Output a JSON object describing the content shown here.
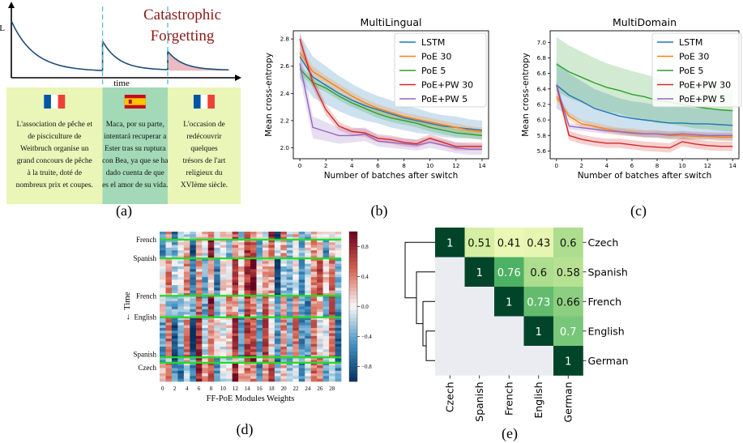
{
  "panel_labels": [
    "(a)",
    "(b)",
    "(c)",
    "(d)",
    "(e)"
  ],
  "chart_data": [
    {
      "type": "line",
      "panel": "(a)",
      "title": "Catastrophic Forgetting",
      "title_lines": [
        "Catastrophic",
        "Forgetting"
      ],
      "xlabel": "time",
      "ylabel": "L",
      "segments": [
        {
          "t_start": 0.0,
          "t_end": 0.42,
          "l_start": 0.9,
          "l_end": 0.1
        },
        {
          "t_start": 0.42,
          "t_end": 0.72,
          "l_start": 0.58,
          "l_end": 0.12
        },
        {
          "t_start": 0.72,
          "t_end": 1.0,
          "l_start": 0.42,
          "l_end": 0.12
        }
      ],
      "switch_times": [
        0.42,
        0.72
      ],
      "texts": [
        {
          "flag": "FR",
          "text": "L'association de pêche et de pisciculture de Weitbruch organise un grand concours de pêche à la truite, doté de nombreux prix et coupes.",
          "lines": [
            "L'association de pêche et",
            "de pisciculture de",
            "Weitbruch organise un",
            "grand concours de pêche",
            "à la truite, doté de",
            "nombreux prix et coupes."
          ]
        },
        {
          "flag": "ES",
          "text": "Maca, por su parte, intentará recuperar a Ester tras su ruptura con Bea, ya que se ha dado cuenta de que es el amor de su vida.",
          "lines": [
            "Maca, por su parte,",
            "intentará recuperar a",
            "Ester tras su ruptura",
            "con Bea, ya que se ha",
            "dado cuenta de que",
            "es el amor de su vida."
          ]
        },
        {
          "flag": "FR",
          "text": "L'occasion de redécouvrir quelques trésors de l'art religieux du XVIème siècle.",
          "lines": [
            "L'occasion de",
            "redécouvrir",
            "quelques",
            "trésors de l'art",
            "religieux du",
            "XVIème siècle."
          ]
        }
      ],
      "colors": {
        "curve": "#1f4e79",
        "switch": "#5bbcc9",
        "forget_fill": "#e8b4bc",
        "title": "#8b1a1a",
        "box_fr": "#eaf5b8",
        "box_es": "#a3d9b6"
      }
    },
    {
      "type": "line",
      "panel": "(b)",
      "title": "MultiLingual",
      "xlabel": "Number of batches after switch",
      "ylabel": "Mean cross-entropy",
      "xlim": [
        -0.5,
        14.5
      ],
      "ylim": [
        1.92,
        2.86
      ],
      "xticks": [
        0,
        2,
        4,
        6,
        8,
        10,
        12,
        14
      ],
      "yticks": [
        2.0,
        2.2,
        2.4,
        2.6,
        2.8
      ],
      "ytick_labels": [
        "2.0",
        "2.2",
        "2.4",
        "2.6",
        "2.8"
      ],
      "x": [
        0,
        1,
        2,
        3,
        4,
        5,
        6,
        7,
        8,
        9,
        10,
        11,
        12,
        13,
        14
      ],
      "legend_position": "top-right",
      "series": [
        {
          "name": "LSTM",
          "color": "#1f77b4",
          "values": [
            2.67,
            2.52,
            2.46,
            2.4,
            2.35,
            2.31,
            2.28,
            2.25,
            2.22,
            2.2,
            2.18,
            2.16,
            2.15,
            2.14,
            2.13
          ],
          "band": [
            0.16,
            0.15,
            0.14,
            0.13,
            0.12,
            0.11,
            0.1,
            0.1,
            0.09,
            0.09,
            0.08,
            0.08,
            0.08,
            0.07,
            0.07
          ]
        },
        {
          "name": "PoE 30",
          "color": "#ff7f0e",
          "values": [
            2.7,
            2.56,
            2.5,
            2.44,
            2.38,
            2.33,
            2.29,
            2.26,
            2.23,
            2.21,
            2.19,
            2.17,
            2.15,
            2.13,
            2.12
          ],
          "band": [
            0.04,
            0.04,
            0.03,
            0.03,
            0.03,
            0.03,
            0.03,
            0.03,
            0.03,
            0.03,
            0.03,
            0.03,
            0.03,
            0.03,
            0.03
          ]
        },
        {
          "name": "PoE 5",
          "color": "#2ca02c",
          "values": [
            2.58,
            2.48,
            2.44,
            2.38,
            2.33,
            2.29,
            2.25,
            2.22,
            2.2,
            2.18,
            2.15,
            2.13,
            2.11,
            2.1,
            2.09
          ],
          "band": [
            0.03,
            0.03,
            0.03,
            0.03,
            0.03,
            0.03,
            0.03,
            0.03,
            0.03,
            0.03,
            0.03,
            0.03,
            0.03,
            0.03,
            0.03
          ]
        },
        {
          "name": "PoE+PW 30",
          "color": "#d62728",
          "values": [
            2.8,
            2.48,
            2.28,
            2.16,
            2.12,
            2.11,
            2.07,
            2.06,
            2.04,
            2.03,
            2.07,
            2.04,
            2.01,
            2.01,
            2.01
          ],
          "band": [
            0.05,
            0.04,
            0.04,
            0.03,
            0.03,
            0.03,
            0.03,
            0.03,
            0.03,
            0.03,
            0.03,
            0.03,
            0.03,
            0.03,
            0.03
          ]
        },
        {
          "name": "PoE+PW 5",
          "color": "#9467bd",
          "values": [
            2.62,
            2.15,
            2.12,
            2.09,
            2.09,
            2.1,
            2.05,
            2.04,
            2.03,
            2.02,
            2.04,
            2.02,
            2.0,
            1.99,
            1.99
          ],
          "band": [
            0.1,
            0.08,
            0.07,
            0.06,
            0.05,
            0.05,
            0.04,
            0.04,
            0.04,
            0.04,
            0.04,
            0.04,
            0.04,
            0.04,
            0.04
          ]
        }
      ]
    },
    {
      "type": "line",
      "panel": "(c)",
      "title": "MultiDomain",
      "xlabel": "Number of batches after switch",
      "ylabel": "Mean cross-entropy",
      "xlim": [
        -0.5,
        14.5
      ],
      "ylim": [
        5.5,
        7.15
      ],
      "xticks": [
        0,
        2,
        4,
        6,
        8,
        10,
        12,
        14
      ],
      "yticks": [
        5.6,
        5.8,
        6.0,
        6.2,
        6.4,
        6.6,
        6.8,
        7.0
      ],
      "ytick_labels": [
        "5.6",
        "5.8",
        "6.0",
        "6.2",
        "6.4",
        "6.6",
        "6.8",
        "7.0"
      ],
      "x": [
        0,
        1,
        2,
        3,
        4,
        5,
        6,
        7,
        8,
        9,
        10,
        11,
        12,
        13,
        14
      ],
      "legend_position": "top-right",
      "series": [
        {
          "name": "LSTM",
          "color": "#1f77b4",
          "values": [
            6.45,
            6.32,
            6.24,
            6.15,
            6.1,
            6.05,
            6.02,
            6.0,
            5.98,
            5.96,
            5.96,
            5.95,
            5.95,
            5.94,
            5.93
          ],
          "band": [
            0.3,
            0.28,
            0.26,
            0.25,
            0.24,
            0.23,
            0.22,
            0.22,
            0.21,
            0.21,
            0.21,
            0.2,
            0.2,
            0.2,
            0.2
          ]
        },
        {
          "name": "PoE 30",
          "color": "#ff7f0e",
          "values": [
            6.3,
            6.05,
            5.95,
            5.92,
            5.88,
            5.85,
            5.84,
            5.82,
            5.82,
            5.8,
            5.8,
            5.79,
            5.79,
            5.78,
            5.78
          ],
          "band": [
            0.05,
            0.05,
            0.05,
            0.05,
            0.05,
            0.05,
            0.05,
            0.05,
            0.05,
            0.05,
            0.05,
            0.05,
            0.05,
            0.05,
            0.05
          ]
        },
        {
          "name": "PoE 5",
          "color": "#2ca02c",
          "values": [
            6.72,
            6.62,
            6.55,
            6.48,
            6.42,
            6.38,
            6.33,
            6.3,
            6.25,
            6.23,
            6.2,
            6.17,
            6.15,
            6.13,
            6.12
          ],
          "band": [
            0.35,
            0.34,
            0.33,
            0.32,
            0.31,
            0.3,
            0.3,
            0.29,
            0.29,
            0.28,
            0.28,
            0.28,
            0.27,
            0.27,
            0.27
          ]
        },
        {
          "name": "PoE+PW 30",
          "color": "#d62728",
          "values": [
            6.45,
            5.8,
            5.75,
            5.72,
            5.7,
            5.7,
            5.68,
            5.66,
            5.65,
            5.64,
            5.72,
            5.69,
            5.67,
            5.66,
            5.66
          ],
          "band": [
            0.06,
            0.06,
            0.06,
            0.06,
            0.06,
            0.06,
            0.06,
            0.06,
            0.06,
            0.06,
            0.06,
            0.06,
            0.06,
            0.06,
            0.06
          ]
        },
        {
          "name": "PoE+PW 5",
          "color": "#9467bd",
          "values": [
            6.45,
            5.92,
            5.9,
            5.88,
            5.86,
            5.85,
            5.83,
            5.82,
            5.82,
            5.81,
            5.82,
            5.81,
            5.8,
            5.8,
            5.8
          ],
          "band": [
            0.04,
            0.04,
            0.04,
            0.04,
            0.04,
            0.04,
            0.04,
            0.04,
            0.04,
            0.04,
            0.04,
            0.04,
            0.04,
            0.04,
            0.04
          ]
        }
      ]
    },
    {
      "type": "heatmap",
      "panel": "(d)",
      "xlabel": "FF-PoE Modules Weights",
      "ylabel": "← Time",
      "n_modules": 30,
      "n_steps": 56,
      "xticks": [
        0,
        2,
        4,
        6,
        8,
        10,
        12,
        14,
        16,
        18,
        20,
        22,
        24,
        26,
        28
      ],
      "colorbar_ticks": [
        0.8,
        0.4,
        0.0,
        -0.4,
        -0.8
      ],
      "colorbar_tick_labels": [
        "0.8",
        "0.4",
        "0.0",
        "−0.4",
        "−0.8"
      ],
      "vmin": -1.0,
      "vmax": 1.0,
      "column_bias": [
        -0.2,
        0.1,
        -0.5,
        -0.35,
        0.2,
        -0.6,
        0.45,
        -0.1,
        0.55,
        -0.3,
        0.25,
        0.05,
        0.5,
        -0.15,
        0.35,
        0.6,
        -0.25,
        0.3,
        0.4,
        -0.55,
        0.15,
        -0.05,
        0.2,
        -0.45,
        -0.3,
        0.1,
        0.3,
        -0.2,
        0.25,
        -0.35
      ],
      "switches": [
        {
          "label": "French",
          "step": 3
        },
        {
          "label": "Spanish",
          "step": 10
        },
        {
          "label": "French",
          "step": 24
        },
        {
          "label": "English",
          "step": 32
        },
        {
          "label": "Spanish",
          "step": 47
        },
        {
          "label": "Czech",
          "step": 49
        }
      ],
      "colors": {
        "switch_line": "#22dd22"
      }
    },
    {
      "type": "heatmap",
      "panel": "(e)",
      "languages": [
        "Czech",
        "Spanish",
        "French",
        "English",
        "German"
      ],
      "matrix": [
        [
          1,
          0.51,
          0.41,
          0.43,
          0.6
        ],
        [
          null,
          1,
          0.76,
          0.6,
          0.58
        ],
        [
          null,
          null,
          1,
          0.73,
          0.66
        ],
        [
          null,
          null,
          null,
          1,
          0.7
        ],
        [
          null,
          null,
          null,
          null,
          1
        ]
      ],
      "cell_labels": [
        [
          "1",
          "0.51",
          "0.41",
          "0.43",
          "0.6"
        ],
        [
          "",
          "1",
          "0.76",
          "0.6",
          "0.58"
        ],
        [
          "",
          "",
          "1",
          "0.73",
          "0.66"
        ],
        [
          "",
          "",
          "",
          "1",
          "0.7"
        ],
        [
          "",
          "",
          "",
          "",
          "1"
        ]
      ],
      "dendrogram": "left",
      "colors": {
        "masked": "#ebebf2",
        "low": "#ffffcc",
        "high": "#004529"
      }
    }
  ]
}
